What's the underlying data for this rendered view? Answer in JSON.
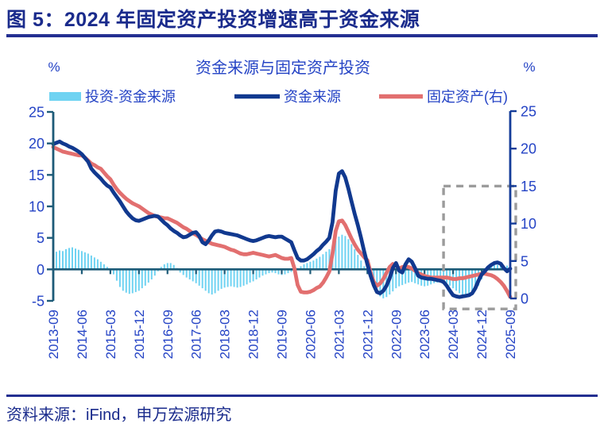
{
  "header": {
    "title": "图 5：2024 年固定资产投资增速高于资金来源"
  },
  "footer": {
    "source": "资料来源：iFind，申万宏源研究"
  },
  "chart_data": {
    "type": "bar+line",
    "title": "资金来源与固定资产投资",
    "unit_left": "%",
    "unit_right": "%",
    "x_frequency": "monthly",
    "x_start": "2013-09",
    "x_end": "2025-09",
    "x_tick_step_months": 9,
    "x_tick_labels": [
      "2013-09",
      "2014-06",
      "2015-03",
      "2015-12",
      "2016-09",
      "2017-06",
      "2018-03",
      "2018-12",
      "2019-09",
      "2020-06",
      "2021-03",
      "2021-12",
      "2022-09",
      "2023-06",
      "2024-03",
      "2024-12",
      "2025-09"
    ],
    "left_axis": {
      "min": -5,
      "max": 25,
      "ticks": [
        25,
        20,
        15,
        10,
        5,
        0,
        -5
      ]
    },
    "right_axis": {
      "min": 0,
      "max": 25,
      "ticks": [
        25,
        20,
        15,
        10,
        5,
        0
      ]
    },
    "grid": "off",
    "legend_position": "top",
    "series": [
      {
        "name": "投资-资金来源",
        "type": "bar",
        "axis": "left",
        "color": "#6FD3F2",
        "values": [
          2.6,
          2.8,
          3.0,
          2.9,
          3.2,
          3.4,
          3.5,
          3.3,
          3.1,
          2.9,
          2.7,
          2.5,
          2.2,
          1.9,
          1.6,
          1.2,
          0.8,
          0.4,
          0.0,
          -0.8,
          -1.8,
          -2.8,
          -3.4,
          -3.7,
          -3.9,
          -3.8,
          -3.6,
          -3.4,
          -3.0,
          -2.6,
          -2.1,
          -1.6,
          -1.0,
          -0.3,
          0.4,
          0.8,
          1.0,
          1.0,
          0.7,
          0.2,
          -0.5,
          -0.9,
          -1.3,
          -1.6,
          -1.9,
          -2.2,
          -2.6,
          -3.0,
          -3.4,
          -3.8,
          -4.0,
          -3.8,
          -3.4,
          -3.1,
          -2.9,
          -2.8,
          -2.7,
          -2.8,
          -2.9,
          -2.8,
          -2.6,
          -2.4,
          -2.1,
          -1.9,
          -1.6,
          -1.3,
          -1.0,
          -0.8,
          -0.6,
          -0.5,
          -0.6,
          -0.8,
          -0.9,
          -0.8,
          -0.6,
          -0.4,
          -0.3,
          0.2,
          0.5,
          0.8,
          1.0,
          1.2,
          1.4,
          1.7,
          2.0,
          2.4,
          2.8,
          3.2,
          3.8,
          4.6,
          5.2,
          5.5,
          5.3,
          4.8,
          4.0,
          3.2,
          2.3,
          1.4,
          0.5,
          -0.5,
          -1.5,
          -2.6,
          -3.6,
          -4.3,
          -4.6,
          -4.4,
          -4.0,
          -3.5,
          -3.0,
          -2.7,
          -2.5,
          -2.3,
          -2.1,
          -2.0,
          -2.2,
          -2.4,
          -2.6,
          -2.7,
          -2.6,
          -2.4,
          -2.2,
          -2.1,
          -2.0,
          -1.9,
          -2.2,
          -2.6,
          -3.0,
          -3.4,
          -3.8,
          -4.0,
          -4.0,
          -3.8,
          -3.5,
          -3.1,
          -2.6,
          -1.6,
          -0.6,
          0.4,
          0.6,
          0.7,
          0.7,
          0.6,
          0.5,
          0.6,
          0.4
        ]
      },
      {
        "name": "资金来源",
        "type": "line",
        "axis": "left",
        "color": "#11398F",
        "values": [
          19.9,
          20.1,
          20.3,
          20.0,
          19.8,
          19.5,
          19.3,
          19.0,
          18.7,
          18.3,
          17.7,
          17.1,
          16.0,
          15.4,
          14.9,
          14.4,
          13.8,
          13.3,
          13.0,
          12.2,
          11.5,
          10.8,
          10.0,
          9.2,
          8.6,
          8.1,
          7.8,
          7.7,
          7.9,
          8.1,
          8.3,
          8.4,
          8.5,
          8.4,
          7.9,
          7.4,
          7.0,
          6.5,
          6.1,
          5.8,
          5.4,
          5.1,
          5.2,
          5.5,
          5.8,
          5.9,
          5.3,
          4.3,
          4.0,
          4.6,
          5.4,
          6.0,
          6.1,
          6.0,
          5.8,
          5.7,
          5.6,
          5.5,
          5.4,
          5.2,
          5.0,
          4.8,
          4.6,
          4.5,
          4.6,
          4.8,
          5.0,
          5.2,
          5.3,
          5.2,
          5.1,
          5.2,
          5.2,
          4.9,
          4.6,
          4.3,
          3.0,
          1.8,
          1.4,
          1.4,
          1.6,
          2.0,
          2.4,
          2.9,
          3.3,
          3.9,
          4.4,
          5.0,
          7.5,
          12.5,
          15.2,
          15.6,
          14.6,
          12.8,
          10.8,
          8.8,
          7.0,
          5.0,
          2.8,
          0.8,
          -1.0,
          -2.5,
          -3.6,
          -3.8,
          -3.4,
          -2.6,
          -1.4,
          0.2,
          1.0,
          -0.2,
          -0.5,
          0.8,
          1.6,
          1.2,
          0.2,
          -1.0,
          -1.3,
          -1.4,
          -1.5,
          -1.5,
          -1.6,
          -1.7,
          -1.8,
          -2.0,
          -2.6,
          -3.4,
          -4.1,
          -4.3,
          -4.4,
          -4.3,
          -4.2,
          -4.1,
          -3.8,
          -3.0,
          -1.8,
          -0.8,
          -0.3,
          0.3,
          0.7,
          1.0,
          1.1,
          0.9,
          0.2,
          -0.3,
          0.1
        ]
      },
      {
        "name": "固定资产(右)",
        "type": "line",
        "axis": "right",
        "color": "#E26F6F",
        "values": [
          20.2,
          20.0,
          19.8,
          19.6,
          19.5,
          19.4,
          19.3,
          19.2,
          19.1,
          19.1,
          18.8,
          18.4,
          18.0,
          17.8,
          17.5,
          17.3,
          16.8,
          16.3,
          15.9,
          15.2,
          14.6,
          14.1,
          13.7,
          13.3,
          13.0,
          12.7,
          12.5,
          12.3,
          12.0,
          11.7,
          11.4,
          11.2,
          11.0,
          10.9,
          10.8,
          10.7,
          10.7,
          10.5,
          10.3,
          10.1,
          9.8,
          9.5,
          9.3,
          9.0,
          8.7,
          8.5,
          8.2,
          7.9,
          7.7,
          7.5,
          7.3,
          7.2,
          7.1,
          7.0,
          6.9,
          6.7,
          6.5,
          6.4,
          6.2,
          6.0,
          5.9,
          5.9,
          6.0,
          6.1,
          6.0,
          5.9,
          5.8,
          5.7,
          5.6,
          5.7,
          5.8,
          5.6,
          5.4,
          5.3,
          5.3,
          5.4,
          4.0,
          1.8,
          0.9,
          0.8,
          0.8,
          0.9,
          1.1,
          1.4,
          1.6,
          2.1,
          2.8,
          3.6,
          6.0,
          9.0,
          10.3,
          10.4,
          9.8,
          8.9,
          8.0,
          7.2,
          6.5,
          6.0,
          5.5,
          5.1,
          3.5,
          2.2,
          1.7,
          2.0,
          2.6,
          3.4,
          4.2,
          4.6,
          4.4,
          4.0,
          4.2,
          4.3,
          4.2,
          4.0,
          3.7,
          3.4,
          3.2,
          3.0,
          2.9,
          2.8,
          2.8,
          2.8,
          2.8,
          2.8,
          2.8,
          2.7,
          2.6,
          2.6,
          2.7,
          2.7,
          2.8,
          2.9,
          3.0,
          3.1,
          3.2,
          3.3,
          3.3,
          3.2,
          3.1,
          2.9,
          2.6,
          2.2,
          1.7,
          1.0,
          0.2
        ]
      }
    ],
    "highlight_box": {
      "from": "2023-12",
      "to": "2025-09",
      "start_month_index": 123,
      "top_right_value": 15,
      "bottom_right_value": -1.4,
      "color": "#9B9B9B",
      "style": "dashed"
    },
    "colors": {
      "axis_left": "#1D5B78",
      "axis_right": "#143C99",
      "zero_line": "#1D5B78",
      "text_blue": "#2443C5",
      "header_navy": "#1A2B8C"
    }
  }
}
